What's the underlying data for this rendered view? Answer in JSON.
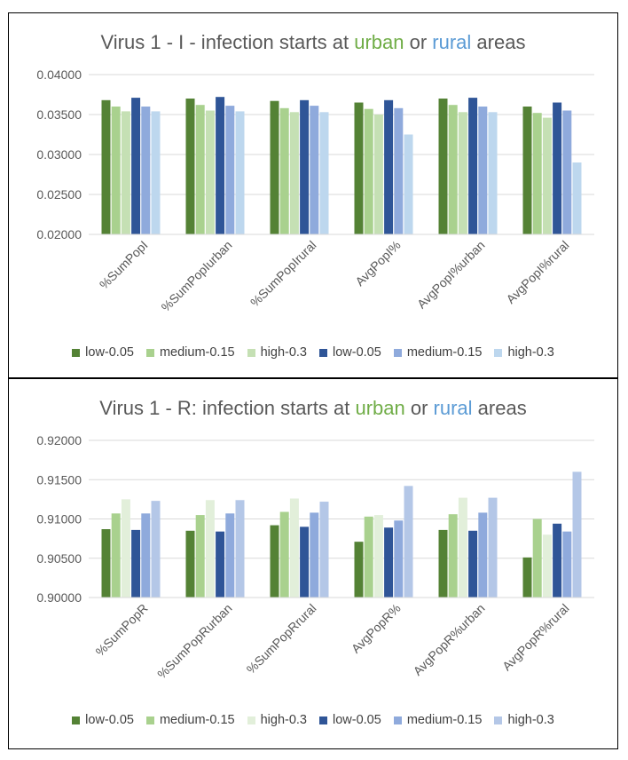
{
  "charts": [
    {
      "title_parts": [
        "Virus 1 - I - infection starts at ",
        "urban",
        " or ",
        "rural",
        " areas"
      ]
    },
    {
      "title_parts": [
        "Virus 1 - R: infection starts at ",
        "urban",
        " or ",
        "rural",
        " areas"
      ]
    }
  ],
  "colors": {
    "green_low": "#548235",
    "green_medium": "#a9d18e",
    "green_high": "#e2efda",
    "blue_low": "#2f5597",
    "blue_medium": "#8faadc",
    "blue_high": "#bdd7ee",
    "urban_text": "#70ad47",
    "rural_text": "#5b9bd5"
  },
  "chart_data": [
    {
      "type": "bar",
      "categories": [
        "%SumPopI",
        "%SumPopIurban",
        "%SumPopIrural",
        "AvgPopI%",
        "AvgPopI%urban",
        "AvgPopI%rural"
      ],
      "ylim": [
        0.02,
        0.04
      ],
      "yticks": [
        "0.02000",
        "0.02500",
        "0.03000",
        "0.03500",
        "0.04000"
      ],
      "ytick_values": [
        0.02,
        0.025,
        0.03,
        0.035,
        0.04
      ],
      "grid": true,
      "legend_position": "bottom",
      "series": [
        {
          "name": "low-0.05",
          "color": "#548235",
          "values": [
            0.0368,
            0.037,
            0.0367,
            0.0365,
            0.037,
            0.036
          ]
        },
        {
          "name": "medium-0.15",
          "color": "#a9d18e",
          "values": [
            0.036,
            0.0362,
            0.0358,
            0.0357,
            0.0362,
            0.0352
          ]
        },
        {
          "name": "high-0.3",
          "color": "#c5e0b4",
          "values": [
            0.0354,
            0.0355,
            0.0353,
            0.035,
            0.0353,
            0.0346
          ]
        },
        {
          "name": "low-0.05",
          "color": "#2f5597",
          "values": [
            0.0371,
            0.0372,
            0.0368,
            0.0368,
            0.0371,
            0.0365
          ]
        },
        {
          "name": "medium-0.15",
          "color": "#8faadc",
          "values": [
            0.036,
            0.0361,
            0.0361,
            0.0358,
            0.036,
            0.0355
          ]
        },
        {
          "name": "high-0.3",
          "color": "#bdd7ee",
          "values": [
            0.0354,
            0.0354,
            0.0353,
            0.0325,
            0.0353,
            0.029
          ]
        }
      ]
    },
    {
      "type": "bar",
      "categories": [
        "%SumPopR",
        "%SumPopRurban",
        "%SumPopRrural",
        "AvgPopR%",
        "AvgPopR%urban",
        "AvgPopR%rural"
      ],
      "ylim": [
        0.9,
        0.92
      ],
      "yticks": [
        "0.90000",
        "0.90500",
        "0.91000",
        "0.91500",
        "0.92000"
      ],
      "ytick_values": [
        0.9,
        0.905,
        0.91,
        0.915,
        0.92
      ],
      "grid": true,
      "legend_position": "bottom",
      "series": [
        {
          "name": "low-0.05",
          "color": "#548235",
          "values": [
            0.9087,
            0.9085,
            0.9092,
            0.9071,
            0.9086,
            0.9051
          ]
        },
        {
          "name": "medium-0.15",
          "color": "#a9d18e",
          "values": [
            0.9107,
            0.9105,
            0.9109,
            0.9103,
            0.9106,
            0.91
          ]
        },
        {
          "name": "high-0.3",
          "color": "#e2efda",
          "values": [
            0.9125,
            0.9124,
            0.9126,
            0.9105,
            0.9127,
            0.908
          ]
        },
        {
          "name": "low-0.05",
          "color": "#2f5597",
          "values": [
            0.9086,
            0.9084,
            0.909,
            0.9089,
            0.9085,
            0.9094
          ]
        },
        {
          "name": "medium-0.15",
          "color": "#8faadc",
          "values": [
            0.9107,
            0.9107,
            0.9108,
            0.9098,
            0.9108,
            0.9084
          ]
        },
        {
          "name": "high-0.3",
          "color": "#b4c7e7",
          "values": [
            0.9123,
            0.9124,
            0.9122,
            0.9142,
            0.9127,
            0.916
          ]
        }
      ]
    }
  ]
}
